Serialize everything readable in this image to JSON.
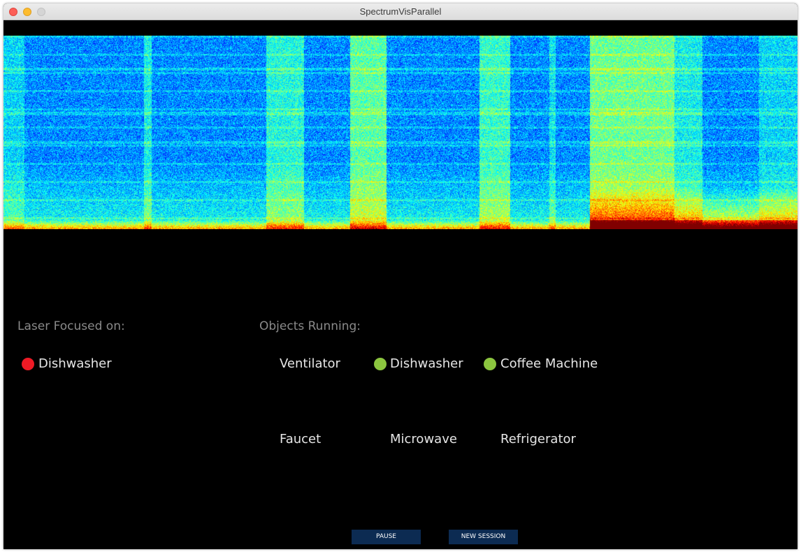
{
  "window": {
    "title": "SpectrumVisParallel"
  },
  "colors": {
    "background": "#000000",
    "status_focus": "#ee1a25",
    "status_running": "#8cc63f",
    "button_bg": "#0c2b52"
  },
  "spectrogram": {
    "colormap": "jet"
  },
  "laser": {
    "heading": "Laser Focused on:",
    "target": {
      "label": "Dishwasher",
      "status": "focused"
    }
  },
  "objects": {
    "heading": "Objects Running:",
    "items": [
      {
        "label": "Ventilator",
        "running": false
      },
      {
        "label": "Dishwasher",
        "running": true
      },
      {
        "label": "Coffee Machine",
        "running": true
      },
      {
        "label": "Faucet",
        "running": false
      },
      {
        "label": "Microwave",
        "running": false
      },
      {
        "label": "Refrigerator",
        "running": false
      }
    ]
  },
  "buttons": {
    "pause": "PAUSE",
    "new_session": "NEW SESSION"
  }
}
